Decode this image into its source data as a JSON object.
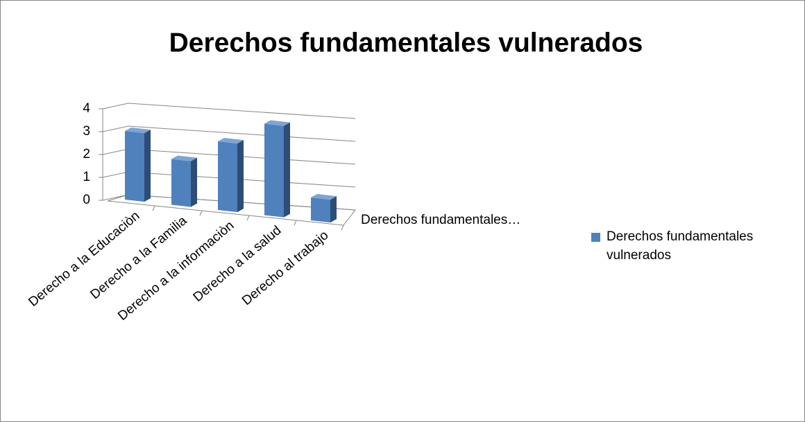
{
  "chart_data": {
    "type": "bar3d",
    "title": "Derechos fundamentales vulnerados",
    "categories": [
      "Derecho a la Educaciòn",
      "Derecho a la Familia",
      "Derecho a la informaciòn",
      "Derecho a la salud",
      "Derecho al trabajo"
    ],
    "series": [
      {
        "name": "Derechos fundamentales vulnerados",
        "color": "#4f81bd",
        "values": [
          3,
          2,
          3,
          4,
          1
        ]
      }
    ],
    "depth_axis_label": "Derechos fundamentales…",
    "ylim": [
      0,
      4
    ],
    "yticks": [
      0,
      1,
      2,
      3,
      4
    ],
    "grid": true,
    "legend": "right"
  }
}
